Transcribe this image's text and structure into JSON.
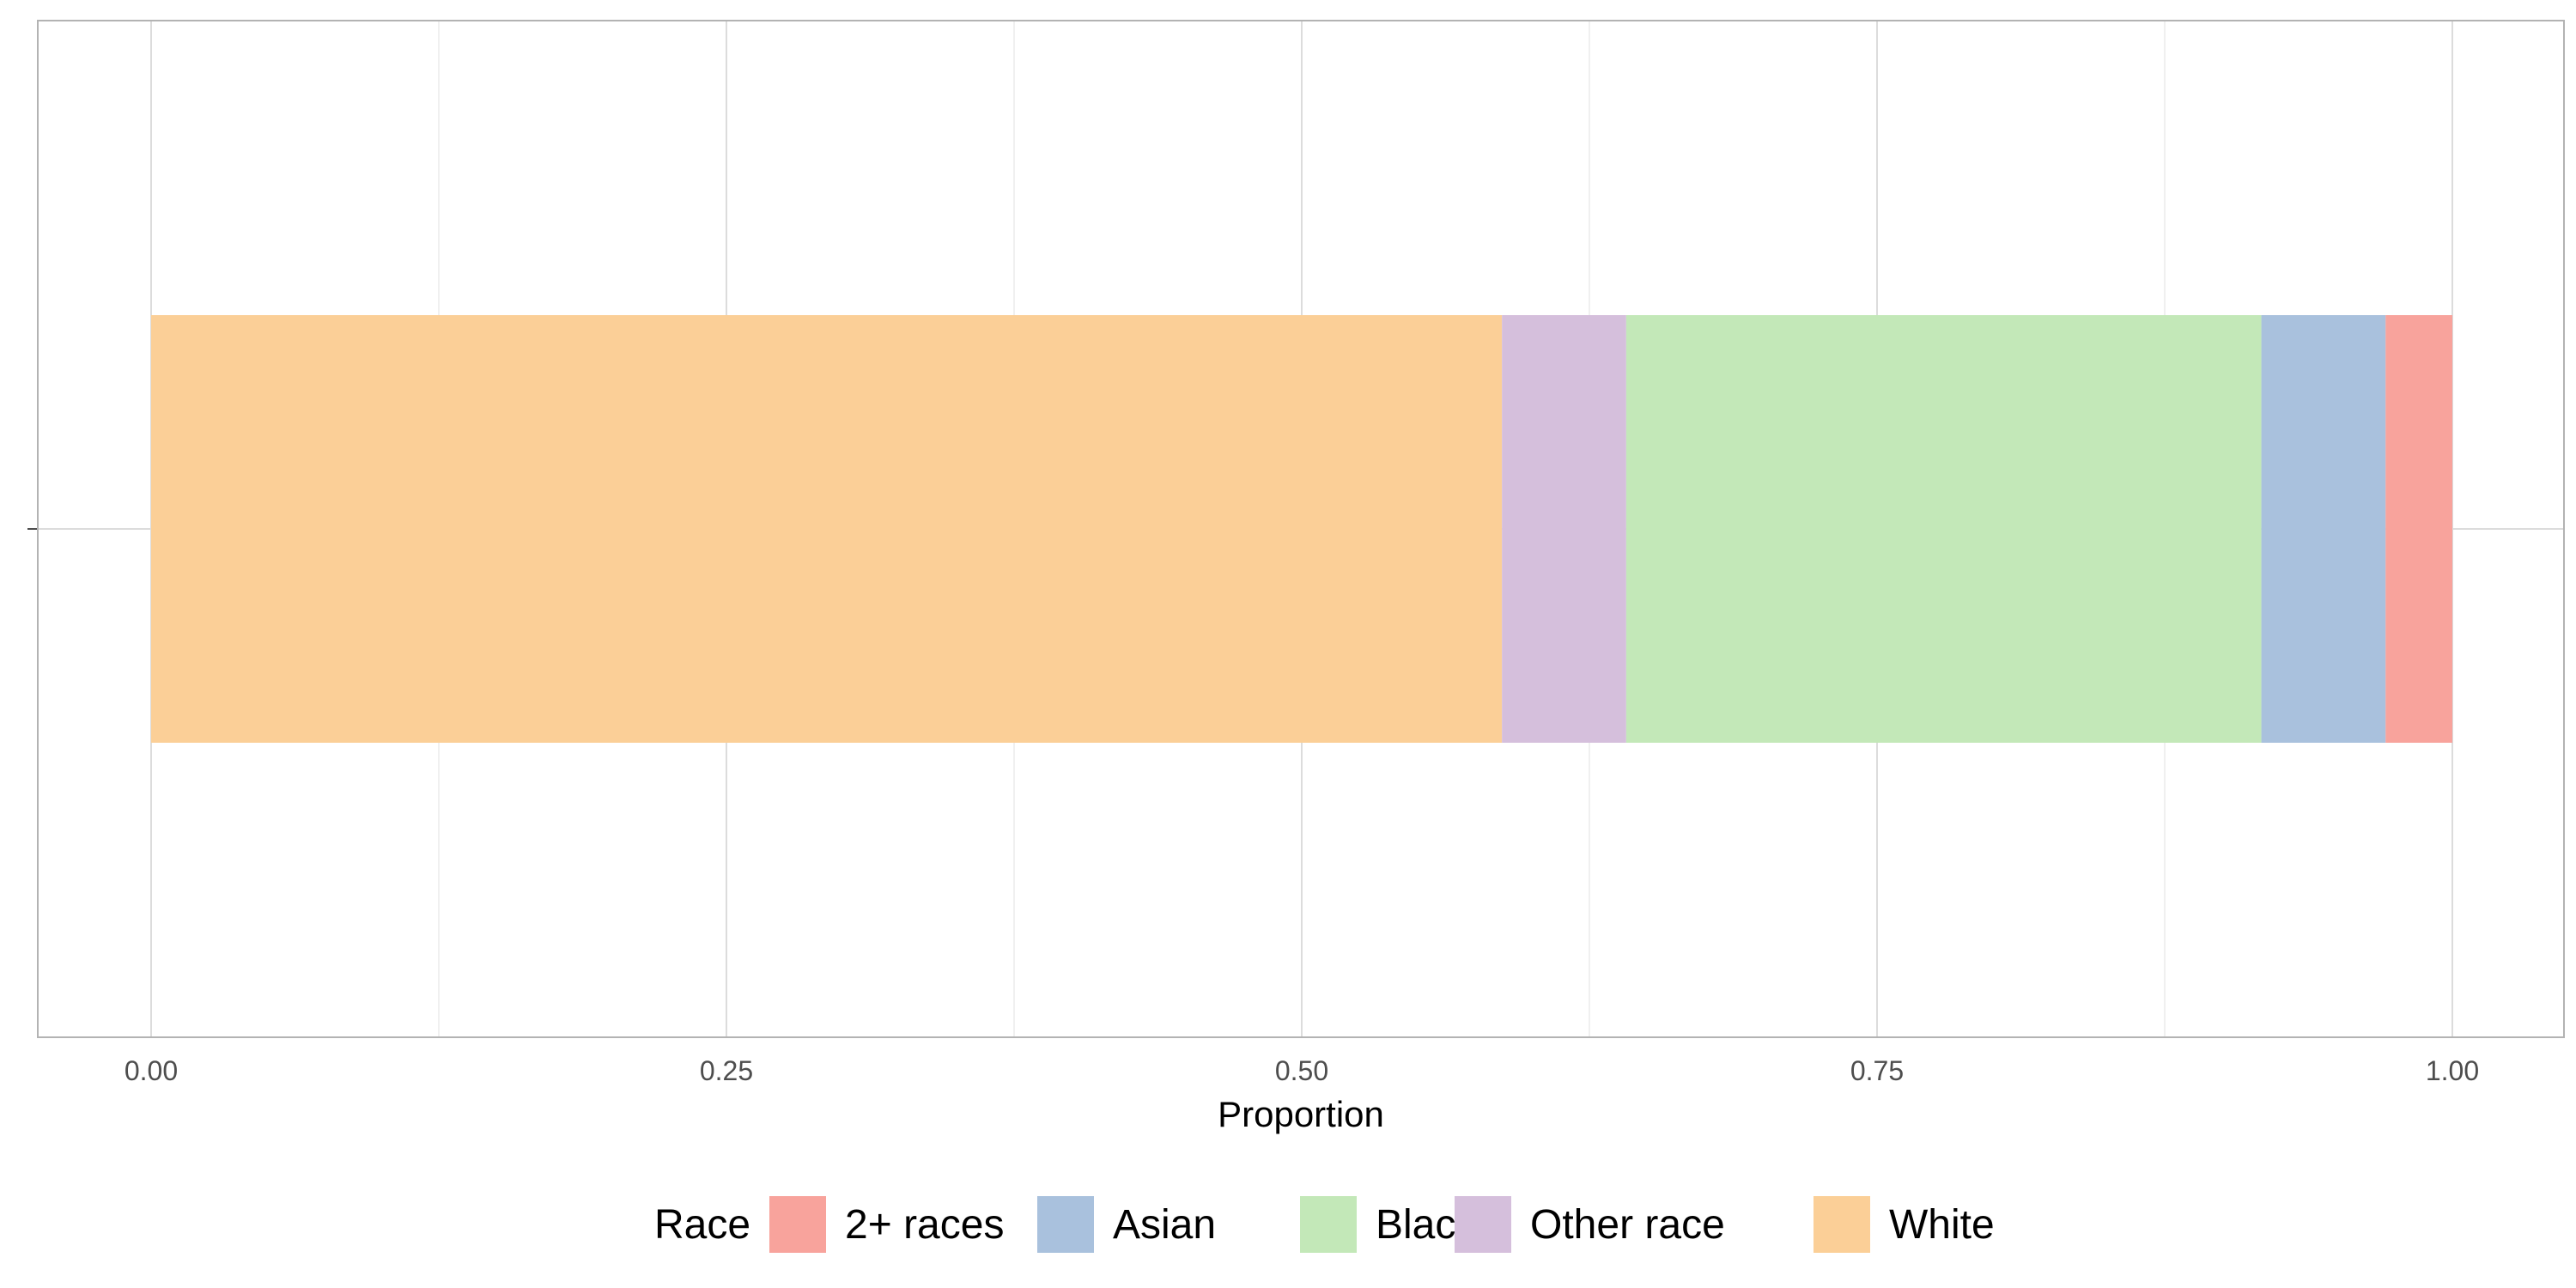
{
  "chart_data": {
    "type": "bar",
    "orientation": "horizontal",
    "stacked": true,
    "xlabel": "Proportion",
    "xlim": [
      0,
      1
    ],
    "x_ticks": [
      0,
      0.25,
      0.5,
      0.75,
      1
    ],
    "x_tick_labels": [
      "0.00",
      "0.25",
      "0.50",
      "0.75",
      "1.00"
    ],
    "grid": true,
    "legend": {
      "title": "Race",
      "position": "bottom",
      "items": [
        {
          "label": "2+ races",
          "color": "#F8A39C"
        },
        {
          "label": "Asian",
          "color": "#A9C1DD"
        },
        {
          "label": "Black",
          "color": "#C3E8B8"
        },
        {
          "label": "Other race",
          "color": "#D5BFDC"
        },
        {
          "label": "White",
          "color": "#FBCF97"
        }
      ]
    },
    "series": [
      {
        "name": "White",
        "value": 0.587,
        "color": "#FBCF97"
      },
      {
        "name": "Other race",
        "value": 0.054,
        "color": "#D5BFDC"
      },
      {
        "name": "Black",
        "value": 0.276,
        "color": "#C3E8B8"
      },
      {
        "name": "Asian",
        "value": 0.054,
        "color": "#A9C1DD"
      },
      {
        "name": "2+ races",
        "value": 0.029,
        "color": "#F8A39C"
      }
    ]
  }
}
